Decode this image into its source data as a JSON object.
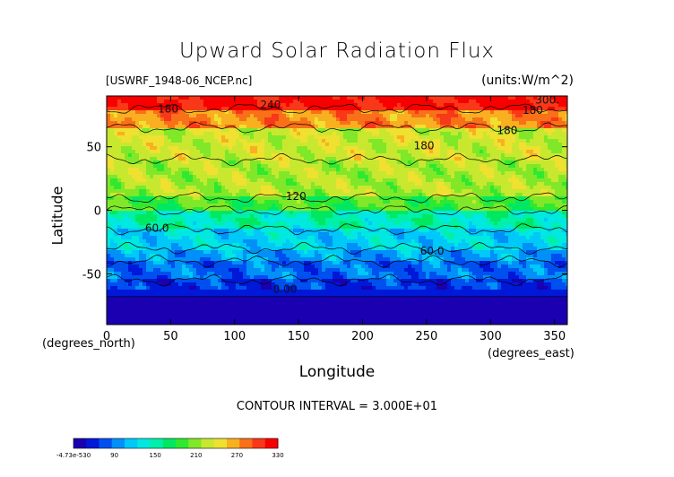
{
  "chart_data": {
    "type": "heatmap",
    "title": "Upward Solar Radiation Flux",
    "source_file": "[USWRF_1948-06_NCEP.nc]",
    "units": "(units:W/m^2)",
    "xlabel": "Longitude",
    "ylabel": "Latitude",
    "x_unit_label": "(degrees_east)",
    "y_unit_label": "(degrees_north)",
    "xlim": [
      0,
      360
    ],
    "ylim": [
      -90,
      90
    ],
    "x_ticks": [
      0,
      50,
      100,
      150,
      200,
      250,
      300,
      350
    ],
    "y_ticks": [
      -50,
      0,
      50
    ],
    "contour_interval_text": "CONTOUR INTERVAL = 3.000E+01",
    "contour_labels": [
      "300.",
      "240",
      "180",
      "180",
      "180",
      "180",
      "120",
      "60.0",
      "60.0",
      "0.00"
    ],
    "colorbar": {
      "tick_labels": [
        "-4.73e-530",
        "90",
        "150",
        "210",
        "270",
        "330"
      ],
      "colors": [
        "#1a00b0",
        "#0018d8",
        "#0050f0",
        "#0090f8",
        "#00c8f8",
        "#00e8e0",
        "#00f0a8",
        "#00e860",
        "#30e830",
        "#80e828",
        "#c8e830",
        "#f0e030",
        "#f8b020",
        "#f87018",
        "#f83818",
        "#f80000"
      ]
    },
    "zonal_bands": [
      {
        "lat_range": [
          80,
          90
        ],
        "value": 300
      },
      {
        "lat_range": [
          65,
          80
        ],
        "value": 250
      },
      {
        "lat_range": [
          40,
          65
        ],
        "value": 200
      },
      {
        "lat_range": [
          10,
          40
        ],
        "value": 190
      },
      {
        "lat_range": [
          0,
          10
        ],
        "value": 160
      },
      {
        "lat_range": [
          -15,
          0
        ],
        "value": 110
      },
      {
        "lat_range": [
          -30,
          -15
        ],
        "value": 80
      },
      {
        "lat_range": [
          -40,
          -30
        ],
        "value": 60
      },
      {
        "lat_range": [
          -55,
          -40
        ],
        "value": 40
      },
      {
        "lat_range": [
          -68,
          -55
        ],
        "value": 20
      },
      {
        "lat_range": [
          -90,
          -68
        ],
        "value": 0
      }
    ]
  },
  "palette_stops": [
    "#6a0aa8",
    "#1a00b0",
    "#0018d8",
    "#0050f0",
    "#0090f8",
    "#00c8f8",
    "#00e8e0",
    "#00f0a8",
    "#00e860",
    "#30e830",
    "#80e828",
    "#c8e830",
    "#f0e030",
    "#f8b020",
    "#f87018",
    "#f83818",
    "#f80000"
  ]
}
